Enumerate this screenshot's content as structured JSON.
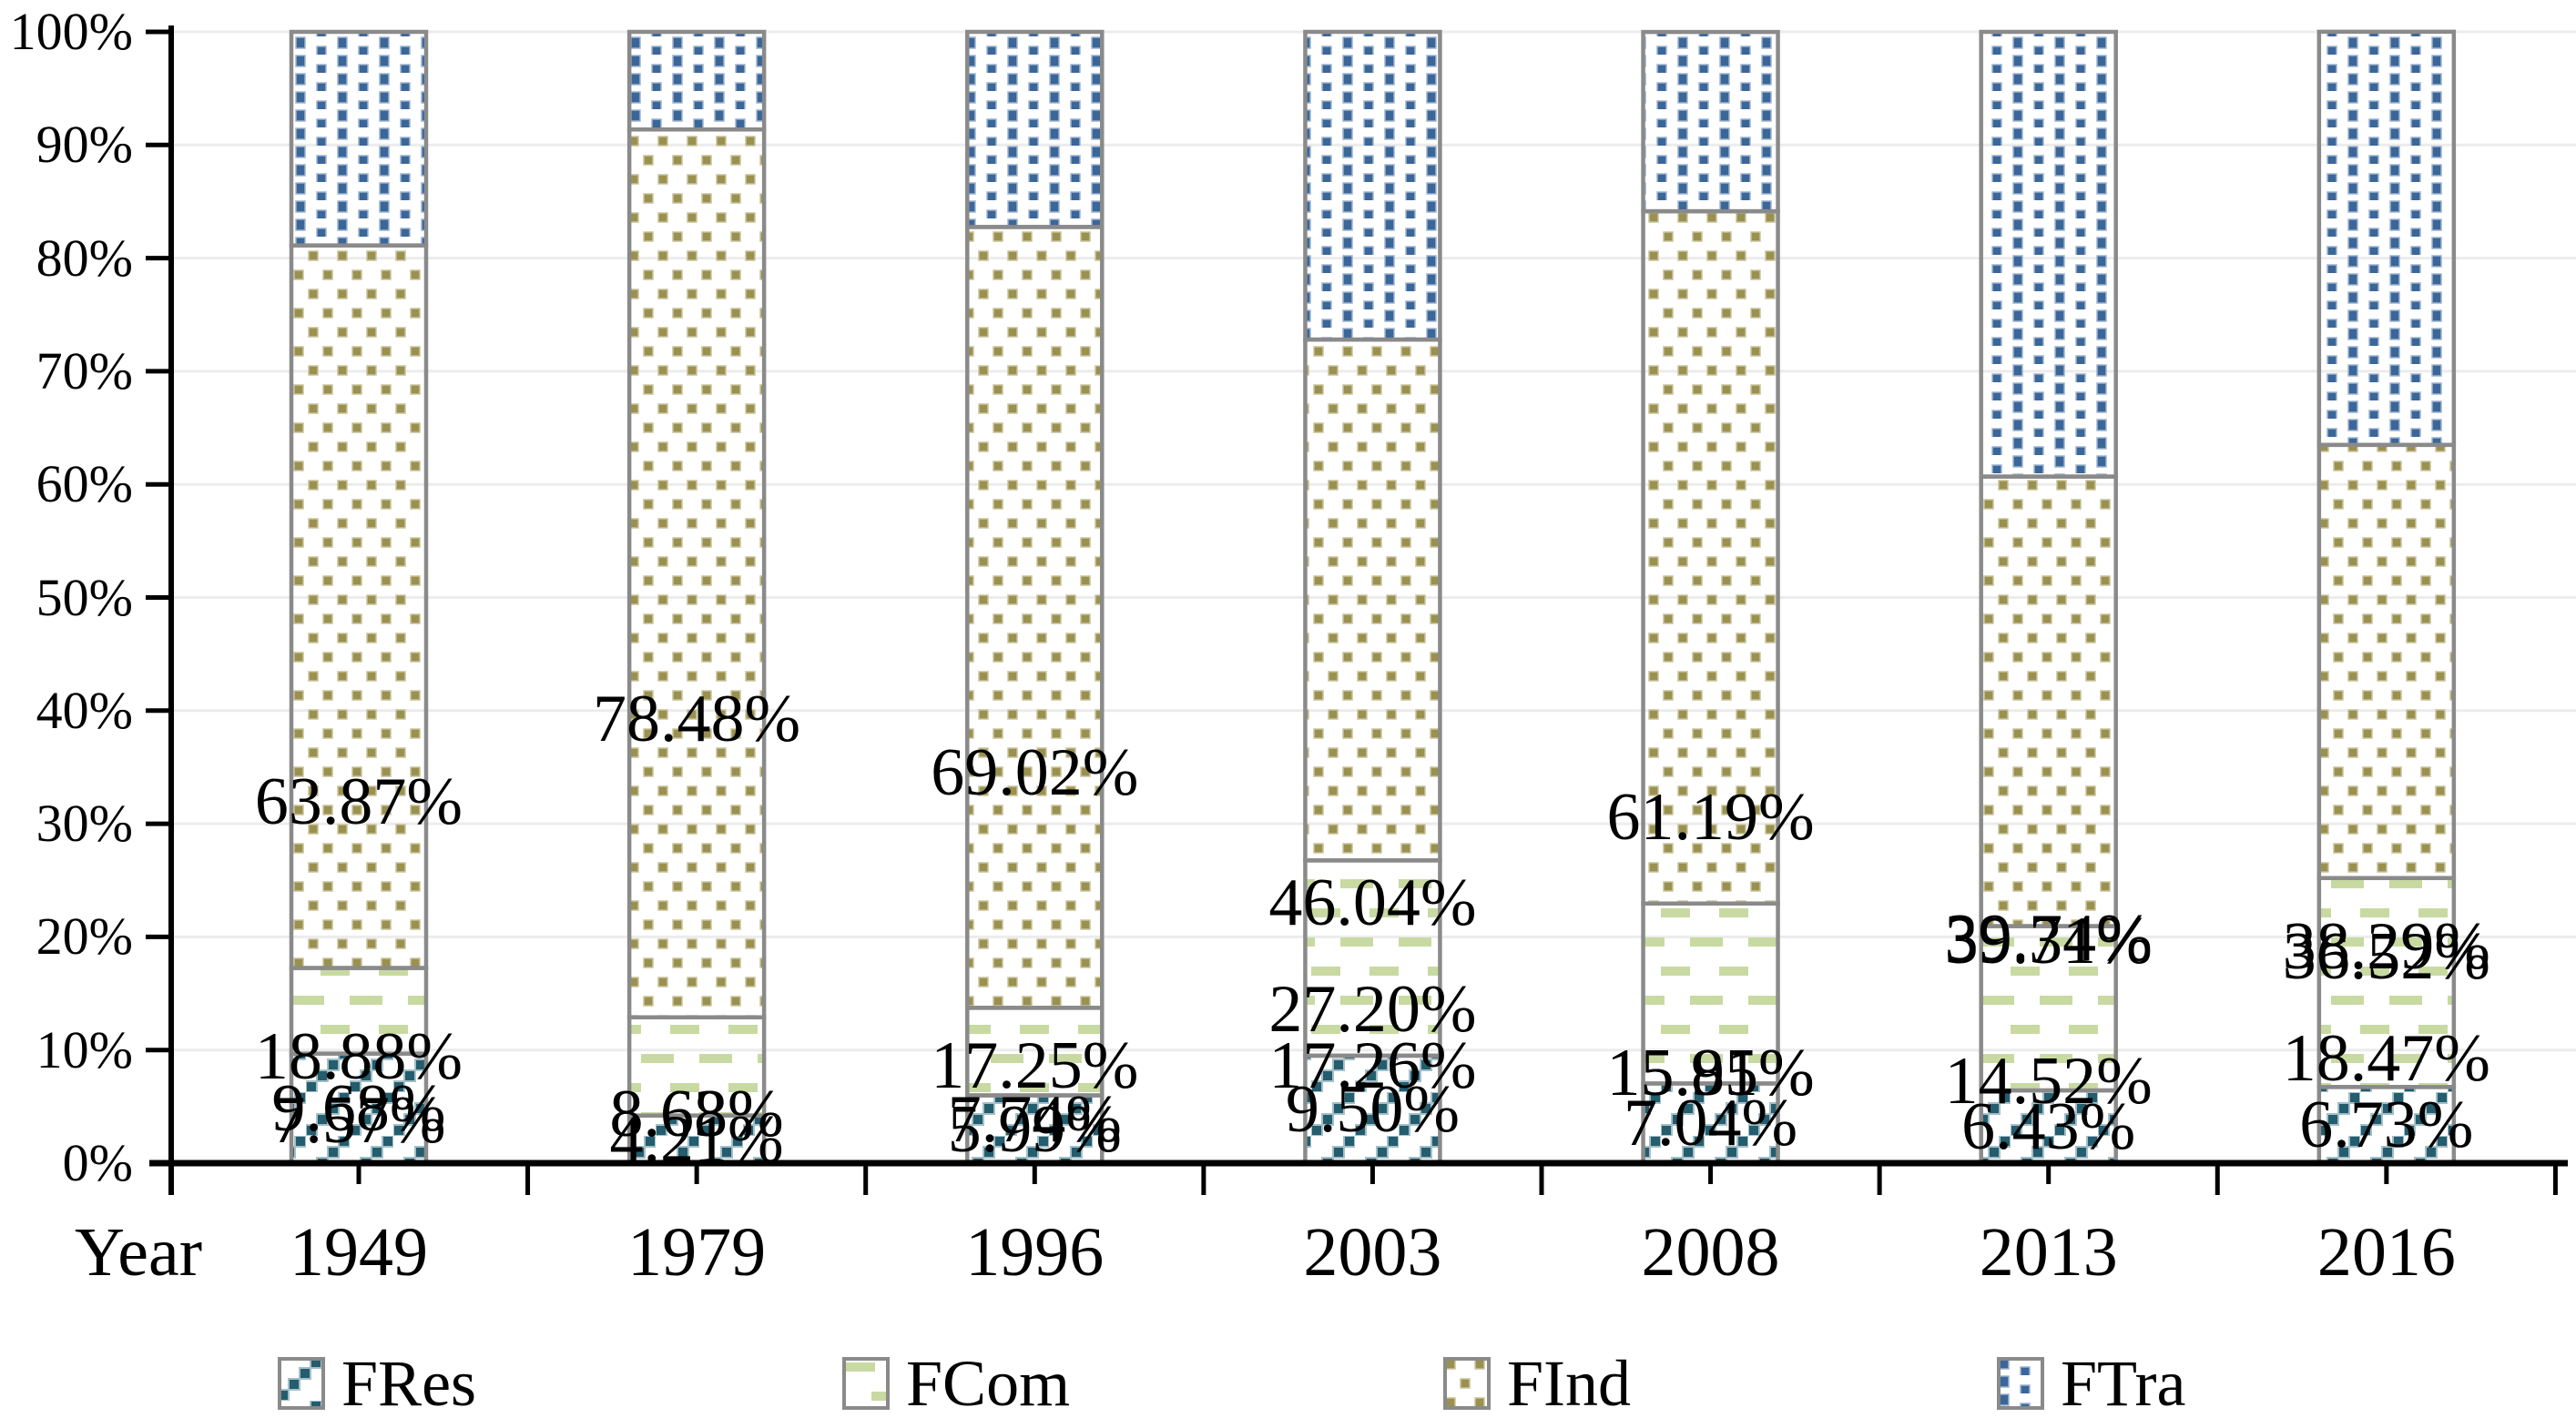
{
  "chart_data": {
    "type": "bar",
    "stacked": true,
    "units": "percent",
    "title": "",
    "xlabel": "Year",
    "ylabel": "",
    "categories": [
      "1949",
      "1979",
      "1996",
      "2003",
      "2008",
      "2013",
      "2016"
    ],
    "series": [
      {
        "name": "FRes",
        "pattern": "diagonal-stair-squares",
        "color": "#245D6E",
        "values": [
          9.68,
          4.21,
          5.99,
          9.5,
          7.04,
          6.43,
          6.73
        ],
        "labels": [
          "9.68%",
          "4.21%",
          "5.99%",
          "9.50%",
          "7.04%",
          "6.43%",
          "6.73%"
        ]
      },
      {
        "name": "FCom",
        "pattern": "horizontal-dashes",
        "color": "#C8DAA1",
        "values": [
          7.57,
          8.68,
          7.74,
          17.26,
          15.91,
          14.52,
          18.47
        ],
        "labels": [
          "7.57%",
          "8.68%",
          "7.74%",
          "17.26%",
          "15.91%",
          "14.52%",
          "18.47%"
        ]
      },
      {
        "name": "FInd",
        "pattern": "sparse-square-dots",
        "color": "#9A9150",
        "values": [
          63.87,
          78.48,
          69.02,
          46.04,
          61.19,
          39.74,
          38.29
        ],
        "labels": [
          "63.87%",
          "78.48%",
          "69.02%",
          "46.04%",
          "61.19%",
          "39.74%",
          "38.29%"
        ]
      },
      {
        "name": "FTra",
        "pattern": "dense-square-dots",
        "color": "#3B6698",
        "values": [
          18.88,
          8.63,
          17.25,
          27.2,
          15.85,
          39.31,
          36.52
        ],
        "labels": [
          "18.88%",
          "8.63%",
          "17.25%",
          "27.20%",
          "15.85%",
          "39.31%",
          "36.52%"
        ]
      }
    ],
    "y_axis_tick_labels": [
      "0%",
      "10%",
      "20%",
      "30%",
      "40%",
      "50%",
      "60%",
      "70%",
      "80%",
      "90%",
      "100%"
    ],
    "ylim": [
      0,
      100
    ],
    "grid": "horizontal",
    "gridline_color": "#ECECEC",
    "axis_color": "#000000",
    "bar_border_color": "#8A8A8A",
    "legend_position": "bottom",
    "legend": [
      "FRes",
      "FCom",
      "FInd",
      "FTra"
    ]
  }
}
